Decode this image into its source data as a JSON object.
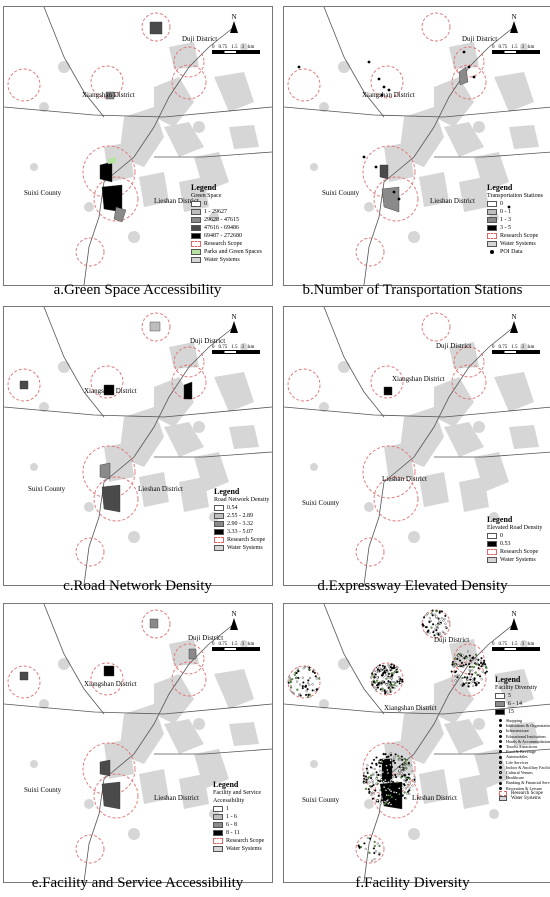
{
  "colors": {
    "water": "#d6d6d6",
    "road": "#555555",
    "research_scope": "#e07070",
    "green": "#b6e3a0",
    "c0": "#ffffff",
    "c1": "#bdbdbd",
    "c2": "#8a8a8a",
    "c3": "#4a4a4a",
    "c4": "#000000"
  },
  "north": {
    "label": "N"
  },
  "scale": {
    "ticks": [
      "0",
      "0.75",
      "1.5",
      "3"
    ],
    "unit": "km"
  },
  "districts": {
    "duji": "Duji District",
    "xiangshan": "Xiangshan District",
    "suixi": "Suixi County",
    "lieshan": "Lieshan District"
  },
  "panels": [
    {
      "caption": "a.Green Space Accessibility",
      "legend_title": "Legend",
      "legend_sub": "Green Space",
      "items": [
        {
          "label": "0",
          "swatch": "c0"
        },
        {
          "label": "1 - 29627",
          "swatch": "c1"
        },
        {
          "label": "29628 - 47615",
          "swatch": "c2"
        },
        {
          "label": "47616 - 69486",
          "swatch": "c3"
        },
        {
          "label": "69487 - 272680",
          "swatch": "c4"
        },
        {
          "label": "Research Scope",
          "swatch": "scope"
        },
        {
          "label": "Parks and Green Spaces",
          "swatch": "green"
        },
        {
          "label": "Water Systems",
          "swatch": "water"
        }
      ]
    },
    {
      "caption": "b.Number of Transportation Stations",
      "legend_title": "Legend",
      "legend_sub": "Transportation Stations",
      "items": [
        {
          "label": "0",
          "swatch": "c0"
        },
        {
          "label": "0 - 1",
          "swatch": "c1"
        },
        {
          "label": "1 - 3",
          "swatch": "c2"
        },
        {
          "label": "3 - 5",
          "swatch": "c4"
        },
        {
          "label": "Research Scope",
          "swatch": "scope"
        },
        {
          "label": "Water Systems",
          "swatch": "water"
        },
        {
          "label": "POI Data",
          "swatch": "dot"
        }
      ]
    },
    {
      "caption": "c.Road Network Density",
      "legend_title": "Legend",
      "legend_sub": "Road Network Density",
      "items": [
        {
          "label": "0.54",
          "swatch": "c0"
        },
        {
          "label": "2.55 - 2.89",
          "swatch": "c1"
        },
        {
          "label": "2.90 - 3.32",
          "swatch": "c2"
        },
        {
          "label": "3.33 - 5.07",
          "swatch": "c4"
        },
        {
          "label": "Research Scope",
          "swatch": "scope"
        },
        {
          "label": "Water Systems",
          "swatch": "water"
        }
      ]
    },
    {
      "caption": "d.Expressway Elevated Density",
      "legend_title": "Legend",
      "legend_sub": "Elevated Road Density",
      "items": [
        {
          "label": "0",
          "swatch": "c0"
        },
        {
          "label": "0.53",
          "swatch": "c4"
        },
        {
          "label": "Research Scope",
          "swatch": "scope"
        },
        {
          "label": "Water Systems",
          "swatch": "water"
        }
      ]
    },
    {
      "caption": "e.Facility and Service Accessibility",
      "legend_title": "Legend",
      "legend_sub": "Facility and Service Accessibility",
      "items": [
        {
          "label": "1",
          "swatch": "c0"
        },
        {
          "label": "1 - 6",
          "swatch": "c1"
        },
        {
          "label": "6 - 8",
          "swatch": "c2"
        },
        {
          "label": "8 - 11",
          "swatch": "c4"
        },
        {
          "label": "Research Scope",
          "swatch": "scope"
        },
        {
          "label": "Water Systems",
          "swatch": "water"
        }
      ]
    },
    {
      "caption": "f.Facility Diversity",
      "legend_title": "Legend",
      "legend_sub": "Facility Diversity",
      "items": [
        {
          "label": "5",
          "swatch": "c0"
        },
        {
          "label": "6 - 14",
          "swatch": "c2"
        },
        {
          "label": "15",
          "swatch": "c4"
        }
      ],
      "poi_list": [
        "Shopping",
        "Institutions & Organizations",
        "Infrastructure",
        "Educational Institutions",
        "Hotels & Accommodations",
        "Tourist Attractions",
        "Food & Beverage",
        "Automobiles",
        "Life Services",
        "Indoor & Ancillary Facilities",
        "Cultural Venues",
        "Healthcare",
        "Banking & Financial Services",
        "Recreation & Leisure"
      ],
      "tail_items": [
        {
          "label": "Research Scope",
          "swatch": "scope"
        },
        {
          "label": "Water Systems",
          "swatch": "water"
        }
      ]
    }
  ]
}
